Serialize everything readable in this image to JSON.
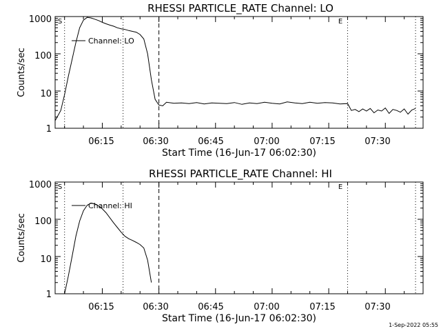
{
  "footer": {
    "timestamp": "1-Sep-2022 05:55"
  },
  "chart_data": [
    {
      "type": "line",
      "title": "RHESSI PARTICLE_RATE Channel: LO",
      "xlabel": "Start Time (16-Jun-17 06:02:30)",
      "ylabel": "Counts/sec",
      "y_scale": "log",
      "xlim": [
        "06:02:30",
        "07:40:00"
      ],
      "ylim": [
        1,
        1000
      ],
      "x_ticks": [
        "06:15",
        "06:30",
        "06:45",
        "07:00",
        "07:15",
        "07:30"
      ],
      "y_ticks": [
        "1",
        "10",
        "100",
        "1000"
      ],
      "legend": {
        "position": "top-left",
        "entries": [
          "Channel: LO"
        ]
      },
      "vlines": [
        {
          "x": "06:05:00",
          "style": "dotted",
          "label": "S"
        },
        {
          "x": "06:20:30",
          "style": "dotted",
          "label": ""
        },
        {
          "x": "06:30:00",
          "style": "dashed",
          "label": ""
        },
        {
          "x": "07:20:00",
          "style": "dotted",
          "label": "E"
        },
        {
          "x": "07:38:00",
          "style": "dotted",
          "label": ""
        }
      ],
      "series": [
        {
          "name": "Channel: LO",
          "x": [
            "06:02:30",
            "06:04:00",
            "06:05:00",
            "06:06:00",
            "06:07:00",
            "06:08:00",
            "06:09:00",
            "06:10:00",
            "06:11:00",
            "06:12:00",
            "06:13:00",
            "06:14:00",
            "06:15:00",
            "06:16:00",
            "06:17:00",
            "06:18:00",
            "06:19:00",
            "06:20:00",
            "06:21:00",
            "06:22:00",
            "06:23:00",
            "06:24:00",
            "06:25:00",
            "06:26:00",
            "06:27:00",
            "06:28:00",
            "06:29:00",
            "06:30:00",
            "06:31:00",
            "06:32:00",
            "06:34:00",
            "06:36:00",
            "06:38:00",
            "06:40:00",
            "06:42:00",
            "06:44:00",
            "06:46:00",
            "06:48:00",
            "06:50:00",
            "06:52:00",
            "06:54:00",
            "06:56:00",
            "06:58:00",
            "07:00:00",
            "07:02:00",
            "07:04:00",
            "07:06:00",
            "07:08:00",
            "07:10:00",
            "07:12:00",
            "07:14:00",
            "07:16:00",
            "07:18:00",
            "07:20:00",
            "07:21:00",
            "07:22:00",
            "07:23:00",
            "07:24:00",
            "07:25:00",
            "07:26:00",
            "07:27:00",
            "07:28:00",
            "07:29:00",
            "07:30:00",
            "07:31:00",
            "07:32:00",
            "07:33:00",
            "07:34:00",
            "07:35:00",
            "07:36:00",
            "07:37:00",
            "07:38:00"
          ],
          "y": [
            1.6,
            3.0,
            8,
            25,
            70,
            200,
            500,
            800,
            950,
            920,
            850,
            780,
            700,
            640,
            590,
            550,
            500,
            470,
            450,
            420,
            400,
            380,
            330,
            250,
            100,
            20,
            6,
            4.2,
            4.0,
            5.0,
            4.7,
            4.8,
            4.6,
            4.9,
            4.5,
            4.8,
            4.7,
            4.6,
            4.9,
            4.4,
            4.8,
            4.6,
            5.0,
            4.7,
            4.5,
            5.1,
            4.8,
            4.6,
            5.0,
            4.7,
            4.9,
            4.8,
            4.5,
            4.6,
            3.0,
            3.2,
            2.8,
            3.3,
            2.9,
            3.4,
            2.6,
            3.1,
            2.9,
            3.5,
            2.5,
            3.2,
            3.0,
            2.7,
            3.3,
            2.4,
            3.1,
            3.4
          ]
        }
      ]
    },
    {
      "type": "line",
      "title": "RHESSI PARTICLE_RATE Channel: HI",
      "xlabel": "Start Time (16-Jun-17 06:02:30)",
      "ylabel": "Counts/sec",
      "y_scale": "log",
      "xlim": [
        "06:02:30",
        "07:40:00"
      ],
      "ylim": [
        1,
        1000
      ],
      "x_ticks": [
        "06:15",
        "06:30",
        "06:45",
        "07:00",
        "07:15",
        "07:30"
      ],
      "y_ticks": [
        "1",
        "10",
        "100",
        "1000"
      ],
      "legend": {
        "position": "top-left",
        "entries": [
          "Channel: HI"
        ]
      },
      "vlines": [
        {
          "x": "06:05:00",
          "style": "dotted",
          "label": "S"
        },
        {
          "x": "06:20:30",
          "style": "dotted",
          "label": ""
        },
        {
          "x": "06:30:00",
          "style": "dashed",
          "label": ""
        },
        {
          "x": "07:20:00",
          "style": "dotted",
          "label": "E"
        },
        {
          "x": "07:38:00",
          "style": "dotted",
          "label": ""
        }
      ],
      "series": [
        {
          "name": "Channel: HI",
          "x": [
            "06:05:00",
            "06:06:00",
            "06:07:00",
            "06:08:00",
            "06:09:00",
            "06:10:00",
            "06:11:00",
            "06:12:00",
            "06:13:00",
            "06:14:00",
            "06:15:00",
            "06:16:00",
            "06:17:00",
            "06:18:00",
            "06:19:00",
            "06:20:00",
            "06:21:00",
            "06:22:00",
            "06:23:00",
            "06:24:00",
            "06:25:00",
            "06:26:00",
            "06:27:00",
            "06:28:00"
          ],
          "y": [
            1,
            3,
            10,
            35,
            90,
            170,
            240,
            270,
            260,
            230,
            190,
            150,
            110,
            80,
            60,
            45,
            35,
            30,
            27,
            24,
            21,
            17,
            8,
            2
          ]
        }
      ]
    }
  ]
}
